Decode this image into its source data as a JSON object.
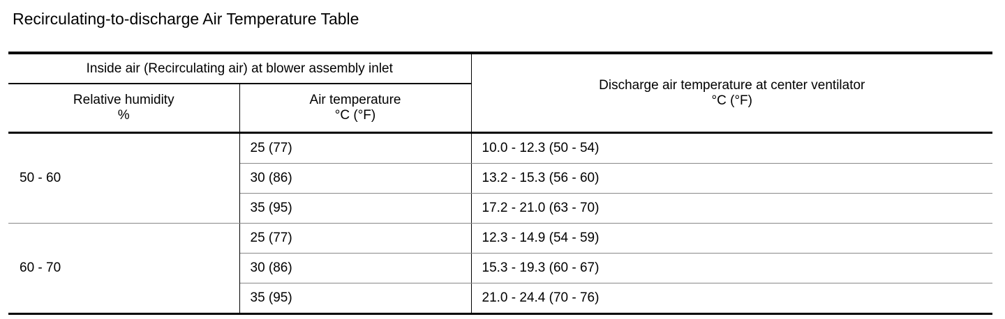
{
  "title": "Recirculating-to-discharge Air Temperature Table",
  "header": {
    "inlet": "Inside air (Recirculating air) at blower assembly inlet",
    "humidity": [
      "Relative humidity",
      "%"
    ],
    "air_temp": [
      "Air temperature",
      "°C (°F)"
    ],
    "discharge": [
      "Discharge air temperature at center ventilator",
      "°C (°F)"
    ]
  },
  "groups": [
    {
      "humidity": "50 - 60",
      "rows": [
        {
          "air": "25 (77)",
          "discharge": "10.0 - 12.3 (50 - 54)"
        },
        {
          "air": "30 (86)",
          "discharge": "13.2 - 15.3 (56 - 60)"
        },
        {
          "air": "35 (95)",
          "discharge": "17.2 - 21.0 (63 - 70)"
        }
      ]
    },
    {
      "humidity": "60 - 70",
      "rows": [
        {
          "air": "25 (77)",
          "discharge": "12.3 - 14.9 (54 - 59)"
        },
        {
          "air": "30 (86)",
          "discharge": "15.3 - 19.3 (60 - 67)"
        },
        {
          "air": "35 (95)",
          "discharge": "21.0 - 24.4 (70 - 76)"
        }
      ]
    }
  ]
}
